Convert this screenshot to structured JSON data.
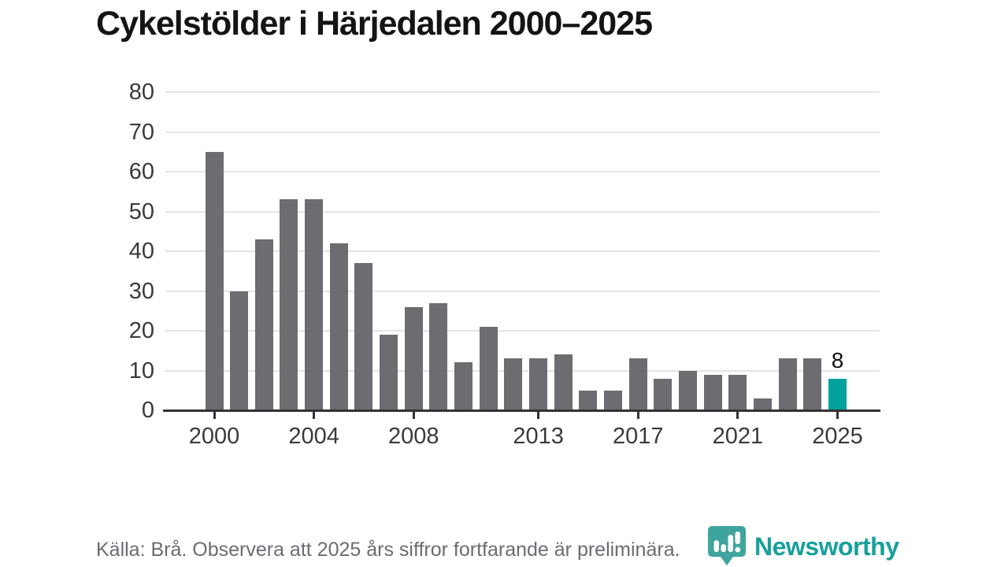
{
  "header": {
    "title": "Cykelstölder i Härjedalen 2000–2025"
  },
  "chart_data": {
    "type": "bar",
    "title": "Cykelstölder i Härjedalen 2000–2025",
    "categories": [
      2000,
      2001,
      2002,
      2003,
      2004,
      2005,
      2006,
      2007,
      2008,
      2009,
      2010,
      2011,
      2012,
      2013,
      2014,
      2015,
      2016,
      2017,
      2018,
      2019,
      2020,
      2021,
      2022,
      2023,
      2024,
      2025
    ],
    "values": [
      65,
      30,
      43,
      53,
      53,
      42,
      37,
      19,
      26,
      27,
      12,
      21,
      13,
      13,
      14,
      5,
      5,
      13,
      8,
      10,
      9,
      9,
      3,
      13,
      13,
      8
    ],
    "highlight_category": 2025,
    "highlight_value_label": "8",
    "xlabel": "",
    "ylabel": "",
    "ylim": [
      0,
      80
    ],
    "yticks": [
      0,
      10,
      20,
      30,
      40,
      50,
      60,
      70,
      80
    ],
    "xticks": [
      2000,
      2004,
      2008,
      2013,
      2017,
      2021,
      2025
    ],
    "grid": true,
    "legend": false,
    "colors": {
      "bar": "#6c6c71",
      "highlight": "#00a29b",
      "grid": "#e4e4e4",
      "axis": "#333333",
      "tick_label": "#3a3a3a",
      "value_label": "#111111"
    }
  },
  "footer": {
    "source_note": "Källa: Brå. Observera att 2025 års siffror fortfarande är preliminära.",
    "brand": {
      "wordmark": "Newsworthy",
      "logo_icon": "newsworthy-pin-bar-chart",
      "wordmark_color": "#17a09b",
      "pin_color": "#3fa49d"
    }
  }
}
